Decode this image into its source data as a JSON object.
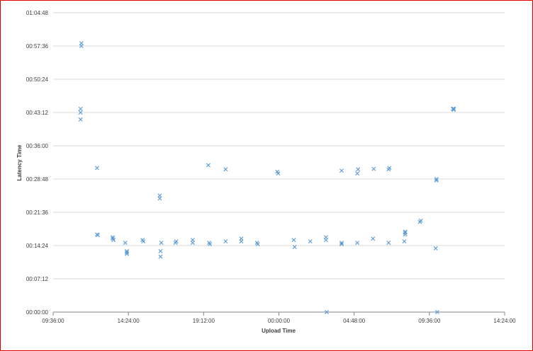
{
  "chart_data": {
    "type": "scatter",
    "xlabel": "Upload Time",
    "ylabel": "Latency Time",
    "x_unit": "hours",
    "y_unit": "seconds",
    "xlim": [
      9.6,
      38.4
    ],
    "ylim": [
      0,
      3888
    ],
    "x_ticks": [
      {
        "value": 9.6,
        "label": "09:36:00"
      },
      {
        "value": 14.4,
        "label": "14:24:00"
      },
      {
        "value": 19.2,
        "label": "19:12:00"
      },
      {
        "value": 24.0,
        "label": "00:00:00"
      },
      {
        "value": 28.8,
        "label": "04:48:00"
      },
      {
        "value": 33.6,
        "label": "09:36:00"
      },
      {
        "value": 38.4,
        "label": "14:24:00"
      }
    ],
    "y_ticks": [
      {
        "value": 0,
        "label": "00:00:00"
      },
      {
        "value": 432,
        "label": "00:07:12"
      },
      {
        "value": 864,
        "label": "00:14:24"
      },
      {
        "value": 1296,
        "label": "00:21:36"
      },
      {
        "value": 1728,
        "label": "00:28:48"
      },
      {
        "value": 2160,
        "label": "00:36:00"
      },
      {
        "value": 2592,
        "label": "00:43:12"
      },
      {
        "value": 3024,
        "label": "00:50:24"
      },
      {
        "value": 3456,
        "label": "00:57:36"
      },
      {
        "value": 3888,
        "label": "01:04:48"
      }
    ],
    "grid": "horizontal",
    "legend": "none",
    "marker": "x",
    "series": [
      {
        "color": "#5b9bd5",
        "x": [
          11.4,
          11.4,
          11.35,
          11.35,
          11.35,
          12.4,
          12.4,
          12.45,
          13.4,
          13.4,
          13.45,
          14.2,
          14.3,
          14.3,
          14.3,
          15.3,
          15.35,
          16.4,
          16.4,
          16.45,
          16.45,
          16.5,
          17.4,
          17.45,
          18.5,
          18.5,
          19.5,
          19.55,
          19.6,
          20.6,
          20.6,
          21.6,
          21.6,
          22.6,
          22.65,
          23.9,
          23.95,
          24.95,
          25.0,
          26.0,
          27.0,
          27.0,
          27.05,
          28.0,
          28.0,
          28.0,
          29.0,
          29.0,
          29.05,
          30.0,
          30.05,
          31.0,
          31.0,
          31.05,
          32.0,
          32.05,
          32.05,
          32.05,
          33.0,
          33.05,
          34.0,
          34.05,
          34.05,
          34.1,
          35.1,
          35.15,
          35.15
        ],
        "y": [
          3492,
          3456,
          2640,
          2592,
          2502,
          1872,
          1008,
          1000,
          972,
          954,
          936,
          900,
          792,
          774,
          756,
          936,
          918,
          1512,
          1476,
          792,
          720,
          900,
          900,
          918,
          900,
          936,
          1908,
          900,
          882,
          1854,
          918,
          954,
          918,
          900,
          882,
          1824,
          1800,
          936,
          846,
          918,
          972,
          936,
          0,
          882,
          900,
          1836,
          900,
          1800,
          1854,
          954,
          1860,
          900,
          1854,
          1872,
          918,
          1008,
          1032,
          1044,
          1170,
          1188,
          828,
          1728,
          1710,
          0,
          2640,
          2628,
          2640
        ]
      }
    ]
  }
}
